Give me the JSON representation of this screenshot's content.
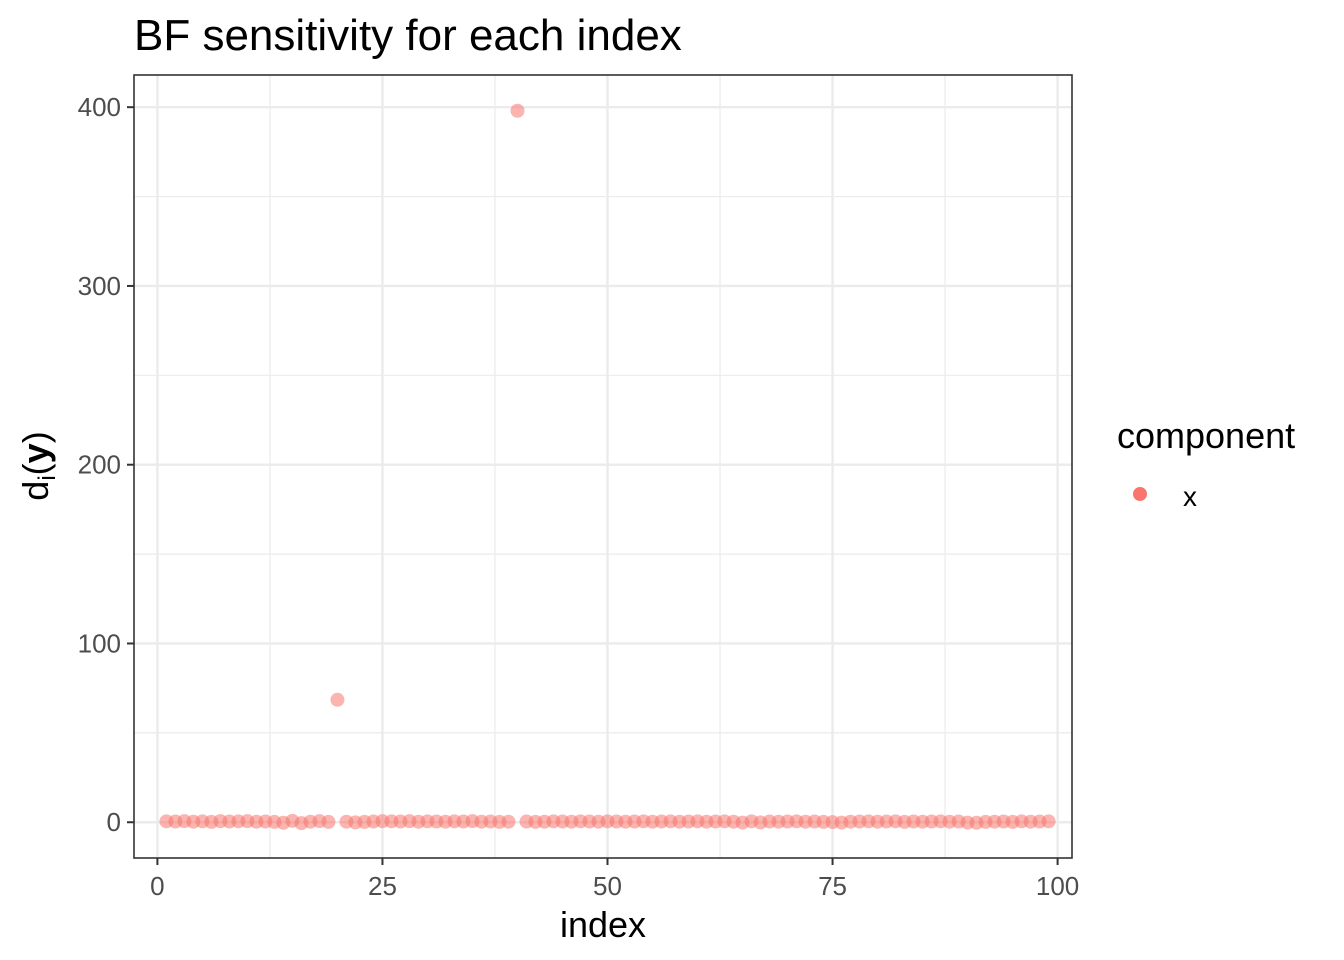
{
  "chart_data": {
    "type": "scatter",
    "title": "BF sensitivity for each index",
    "xlabel": "index",
    "ylabel_main": "d",
    "ylabel_sub": "i",
    "ylabel_arg_open": "(",
    "ylabel_arg": "y",
    "ylabel_arg_close": ")",
    "xlim": [
      -2.6,
      101.6
    ],
    "ylim": [
      -20,
      418
    ],
    "xticks": [
      0,
      25,
      50,
      75,
      100
    ],
    "xtick_labels": [
      "0",
      "25",
      "50",
      "75",
      "100"
    ],
    "yticks": [
      0,
      100,
      200,
      300,
      400
    ],
    "ytick_labels": [
      "0",
      "100",
      "200",
      "300",
      "400"
    ],
    "grid": true,
    "legend": {
      "title": "component",
      "position": "right",
      "entries": [
        {
          "label": "x",
          "color": "#F8766D"
        }
      ]
    },
    "point_color": "#F8766D",
    "point_alpha": 0.55,
    "series": [
      {
        "name": "x",
        "x": [
          1,
          2,
          3,
          4,
          5,
          6,
          7,
          8,
          9,
          10,
          11,
          12,
          13,
          14,
          15,
          16,
          17,
          18,
          19,
          20,
          21,
          22,
          23,
          24,
          25,
          26,
          27,
          28,
          29,
          30,
          31,
          32,
          33,
          34,
          35,
          36,
          37,
          38,
          39,
          40,
          41,
          42,
          43,
          44,
          45,
          46,
          47,
          48,
          49,
          50,
          51,
          52,
          53,
          54,
          55,
          56,
          57,
          58,
          59,
          60,
          61,
          62,
          63,
          64,
          65,
          66,
          67,
          68,
          69,
          70,
          71,
          72,
          73,
          74,
          75,
          76,
          77,
          78,
          79,
          80,
          81,
          82,
          83,
          84,
          85,
          86,
          87,
          88,
          89,
          90,
          91,
          92,
          93,
          94,
          95,
          96,
          97,
          98,
          99
        ],
        "y": [
          0.5,
          0.4,
          0.6,
          0.3,
          0.5,
          0.2,
          0.6,
          0.4,
          0.5,
          0.6,
          0.3,
          0.4,
          0.2,
          -0.3,
          0.8,
          -0.5,
          0.3,
          0.6,
          0.2,
          68.5,
          0.3,
          -0.1,
          0.2,
          0.4,
          0.6,
          0.5,
          0.4,
          0.6,
          0.3,
          0.5,
          0.4,
          0.3,
          0.5,
          0.4,
          0.6,
          0.3,
          0.4,
          0.2,
          0.3,
          398,
          0.4,
          0.2,
          0.3,
          0.5,
          0.4,
          0.3,
          0.5,
          0.4,
          0.3,
          0.5,
          0.4,
          0.3,
          0.4,
          0.5,
          0.3,
          0.4,
          0.5,
          0.3,
          0.4,
          0.5,
          0.3,
          0.4,
          0.5,
          0.3,
          -0.2,
          0.5,
          -0.1,
          0.4,
          0.3,
          0.4,
          0.5,
          0.3,
          0.4,
          0.2,
          0.1,
          -0.2,
          0.3,
          0.4,
          0.5,
          0.3,
          0.4,
          0.5,
          0.2,
          0.4,
          0.3,
          0.4,
          0.5,
          0.3,
          0.4,
          -0.2,
          -0.3,
          0.2,
          0.3,
          0.4,
          0.2,
          0.5,
          0.3,
          0.4,
          0.5
        ]
      }
    ]
  }
}
